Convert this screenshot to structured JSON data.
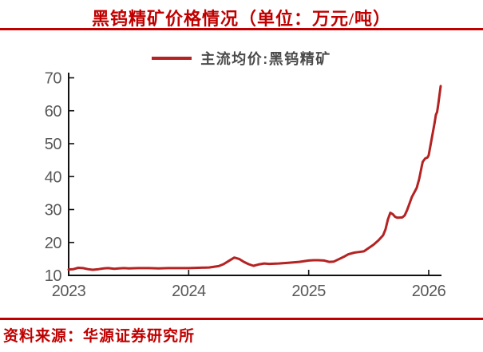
{
  "title": "黑钨精矿价格情况（单位：万元/吨）",
  "legend": {
    "label": "主流均价:黑钨精矿"
  },
  "footer": {
    "source": "资料来源：华源证券研究所"
  },
  "colors": {
    "accent_red": "#C00000",
    "line_red": "#B42222",
    "tick_gray": "#595959",
    "axis_black": "#111111"
  },
  "chart_data": {
    "type": "line",
    "title": "黑钨精矿价格情况（单位：万元/吨）",
    "unit": "万元/吨",
    "xlabel": "",
    "ylabel": "",
    "xlim": [
      2023,
      2026.12
    ],
    "ylim": [
      10,
      70
    ],
    "xticks": [
      2023,
      2024,
      2025,
      2026
    ],
    "yticks": [
      10,
      20,
      30,
      40,
      50,
      60,
      70
    ],
    "grid": false,
    "legend_position": "top-center",
    "series": [
      {
        "name": "主流均价:黑钨精矿",
        "x": [
          2023.0,
          2023.04,
          2023.08,
          2023.12,
          2023.16,
          2023.2,
          2023.25,
          2023.29,
          2023.33,
          2023.38,
          2023.42,
          2023.46,
          2023.5,
          2023.58,
          2023.67,
          2023.75,
          2023.83,
          2023.92,
          2024.0,
          2024.08,
          2024.17,
          2024.25,
          2024.29,
          2024.33,
          2024.38,
          2024.42,
          2024.46,
          2024.5,
          2024.54,
          2024.58,
          2024.63,
          2024.67,
          2024.75,
          2024.83,
          2024.92,
          2025.0,
          2025.04,
          2025.08,
          2025.13,
          2025.17,
          2025.21,
          2025.25,
          2025.29,
          2025.33,
          2025.38,
          2025.42,
          2025.46,
          2025.5,
          2025.54,
          2025.58,
          2025.62,
          2025.64,
          2025.66,
          2025.68,
          2025.7,
          2025.72,
          2025.74,
          2025.78,
          2025.8,
          2025.82,
          2025.84,
          2025.86,
          2025.88,
          2025.9,
          2025.92,
          2025.94,
          2025.95,
          2025.97,
          2025.99,
          2026.0,
          2026.01,
          2026.03,
          2026.05,
          2026.06,
          2026.07,
          2026.08,
          2026.09,
          2026.1
        ],
        "values": [
          11.8,
          11.9,
          12.3,
          12.2,
          11.9,
          11.7,
          11.9,
          12.1,
          12.2,
          12.0,
          12.1,
          12.2,
          12.1,
          12.2,
          12.2,
          12.1,
          12.2,
          12.2,
          12.2,
          12.3,
          12.4,
          12.8,
          13.4,
          14.3,
          15.4,
          15.0,
          14.1,
          13.4,
          12.9,
          13.3,
          13.6,
          13.5,
          13.6,
          13.8,
          14.1,
          14.5,
          14.6,
          14.6,
          14.5,
          14.1,
          14.2,
          14.9,
          15.6,
          16.4,
          16.9,
          17.1,
          17.3,
          18.3,
          19.3,
          20.6,
          22.2,
          24.0,
          27.0,
          29.0,
          28.6,
          27.8,
          27.5,
          27.6,
          28.2,
          29.8,
          31.8,
          33.8,
          35.2,
          36.6,
          39.2,
          42.8,
          44.5,
          45.5,
          45.8,
          46.5,
          48.5,
          52.5,
          56.5,
          58.8,
          59.6,
          62.0,
          64.8,
          67.5
        ]
      }
    ]
  }
}
